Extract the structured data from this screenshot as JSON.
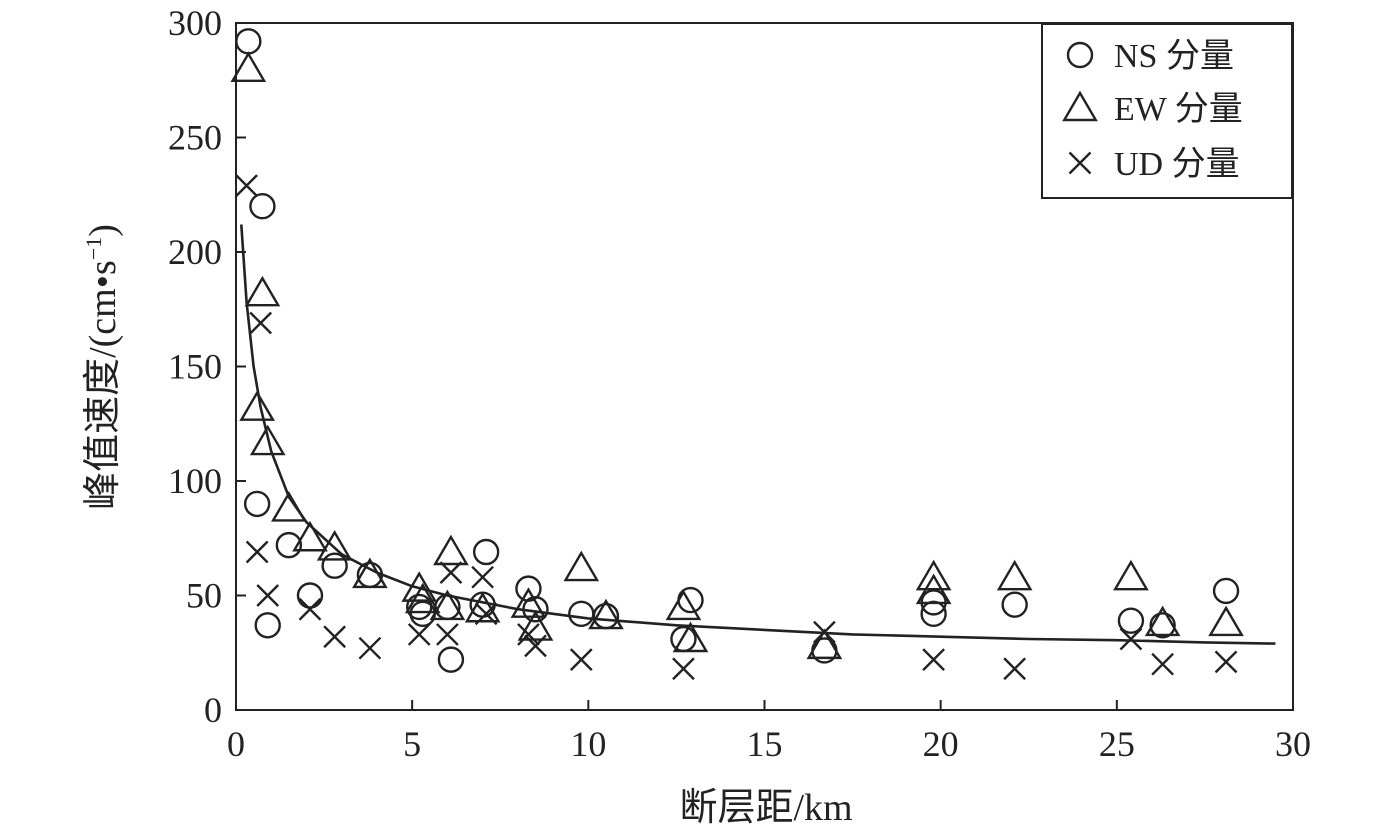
{
  "chart_data": {
    "type": "scatter",
    "xlabel": "断层距/km",
    "ylabel": {
      "main": "峰值速度/(cm",
      "dot": "•",
      "s": "s",
      "sup": "−1",
      "close": ")"
    },
    "xlim": [
      0,
      30
    ],
    "ylim": [
      0,
      300
    ],
    "xticks": [
      0,
      5,
      10,
      15,
      20,
      25,
      30
    ],
    "yticks": [
      0,
      50,
      100,
      150,
      200,
      250,
      300
    ],
    "legend_position": "top-right",
    "series": [
      {
        "name": "NS 分量",
        "marker": "circle",
        "points": [
          [
            0.35,
            292
          ],
          [
            0.75,
            220
          ],
          [
            0.6,
            90
          ],
          [
            0.9,
            37
          ],
          [
            1.5,
            72
          ],
          [
            2.1,
            50
          ],
          [
            2.8,
            63
          ],
          [
            3.8,
            59
          ],
          [
            5.2,
            45
          ],
          [
            5.3,
            42
          ],
          [
            6.1,
            22
          ],
          [
            6.0,
            45
          ],
          [
            7.0,
            46
          ],
          [
            7.1,
            69
          ],
          [
            8.3,
            53
          ],
          [
            8.5,
            44
          ],
          [
            9.8,
            42
          ],
          [
            10.5,
            41
          ],
          [
            12.7,
            31
          ],
          [
            12.9,
            48
          ],
          [
            16.7,
            26
          ],
          [
            19.8,
            42
          ],
          [
            19.8,
            47
          ],
          [
            22.1,
            46
          ],
          [
            25.4,
            39
          ],
          [
            26.3,
            37
          ],
          [
            28.1,
            52
          ]
        ]
      },
      {
        "name": "EW 分量",
        "marker": "triangle",
        "points": [
          [
            0.35,
            280
          ],
          [
            0.75,
            182
          ],
          [
            0.6,
            132
          ],
          [
            0.9,
            117
          ],
          [
            1.5,
            88
          ],
          [
            2.1,
            75
          ],
          [
            2.8,
            71
          ],
          [
            3.8,
            59
          ],
          [
            5.2,
            53
          ],
          [
            5.3,
            48
          ],
          [
            6.1,
            69
          ],
          [
            6.0,
            45
          ],
          [
            7.0,
            44
          ],
          [
            8.3,
            46
          ],
          [
            8.5,
            36
          ],
          [
            9.8,
            62
          ],
          [
            10.5,
            41
          ],
          [
            12.7,
            45
          ],
          [
            12.9,
            31
          ],
          [
            16.7,
            28
          ],
          [
            19.8,
            58
          ],
          [
            19.8,
            52
          ],
          [
            22.1,
            58
          ],
          [
            25.4,
            58
          ],
          [
            26.3,
            38
          ],
          [
            28.1,
            38
          ]
        ]
      },
      {
        "name": "UD 分量",
        "marker": "cross",
        "points": [
          [
            0.3,
            229
          ],
          [
            0.7,
            169
          ],
          [
            0.6,
            69
          ],
          [
            0.9,
            50
          ],
          [
            2.1,
            44
          ],
          [
            2.8,
            32
          ],
          [
            3.8,
            27
          ],
          [
            5.2,
            33
          ],
          [
            6.0,
            33
          ],
          [
            6.1,
            60
          ],
          [
            7.0,
            58
          ],
          [
            7.1,
            42
          ],
          [
            8.3,
            33
          ],
          [
            8.5,
            28
          ],
          [
            9.8,
            22
          ],
          [
            12.7,
            18
          ],
          [
            16.7,
            34
          ],
          [
            19.8,
            22
          ],
          [
            22.1,
            18
          ],
          [
            25.4,
            31
          ],
          [
            26.3,
            20
          ],
          [
            28.1,
            21
          ]
        ]
      }
    ],
    "fit_curve": {
      "x": [
        0.15,
        0.3,
        0.5,
        0.7,
        1.0,
        1.5,
        2.0,
        3.0,
        4.0,
        5.0,
        6.0,
        8.0,
        10.0,
        12.5,
        15.0,
        17.5,
        20.0,
        22.5,
        25.0,
        27.5,
        29.5
      ],
      "y": [
        212,
        178,
        150,
        132,
        113,
        93,
        82,
        68,
        60,
        54,
        50,
        44,
        40,
        37,
        35,
        33,
        32,
        31,
        30.5,
        29.5,
        29
      ]
    }
  }
}
